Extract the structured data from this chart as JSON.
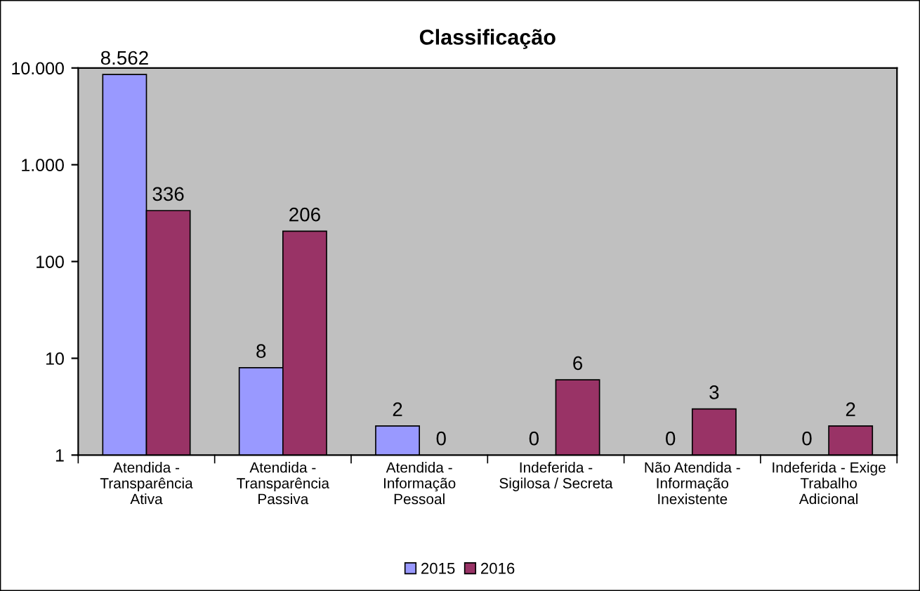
{
  "chart_data": {
    "type": "bar",
    "title": "Classificação",
    "categories": [
      "Atendida -\nTransparência\nAtiva",
      "Atendida -\nTransparência\nPassiva",
      "Atendida -\nInformação\nPessoal",
      "Indeferida -\nSigilosa / Secreta",
      "Não Atendida -\nInformação\nInexistente",
      "Indeferida - Exige\nTrabalho\nAdicional"
    ],
    "series": [
      {
        "name": "2015",
        "color": "#9999ff",
        "values": [
          8562,
          8,
          2,
          null,
          null,
          null
        ],
        "value_labels": [
          "8.562",
          "8",
          "2",
          "0",
          "0",
          "0"
        ]
      },
      {
        "name": "2016",
        "color": "#993366",
        "values": [
          336,
          206,
          null,
          6,
          3,
          2
        ],
        "value_labels": [
          "336",
          "206",
          "0",
          "6",
          "3",
          "2"
        ]
      }
    ],
    "log": "y",
    "ylim": [
      1,
      10000
    ],
    "yticks": [
      1,
      10,
      100,
      {
        "value": 1000,
        "label": "1.000"
      },
      {
        "value": 10000,
        "label": "10.000"
      }
    ],
    "grid": false,
    "legend": "bottom"
  }
}
